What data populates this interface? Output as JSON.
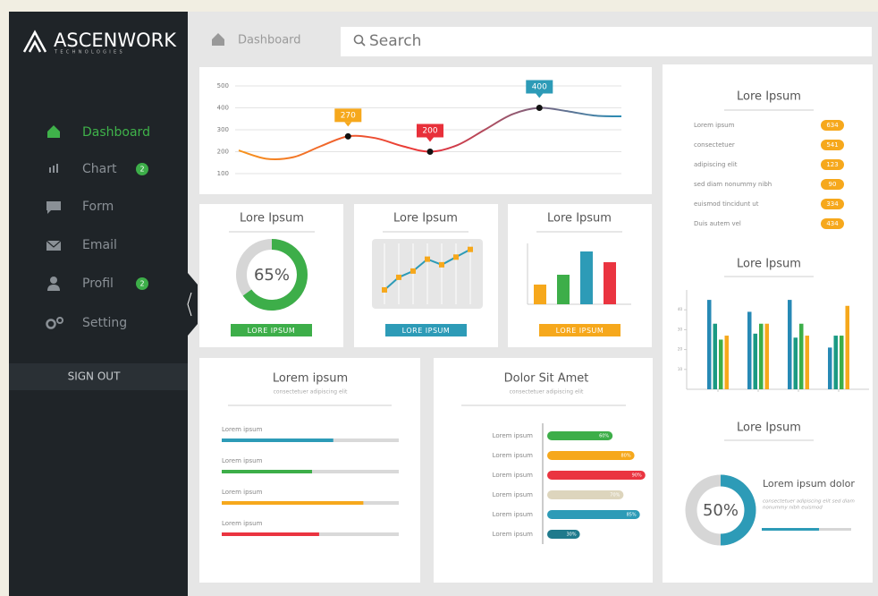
{
  "sidebar": {
    "logo": "ASCENWORK",
    "logo_sub": "TECHNOLOGIES",
    "nav": [
      {
        "label": "Dashboard"
      },
      {
        "label": "Chart",
        "badge": 2
      },
      {
        "label": "Form"
      },
      {
        "label": "Email"
      },
      {
        "label": "Profil",
        "badge": 2
      },
      {
        "label": "Setting"
      }
    ],
    "sign_out": "SIGN OUT"
  },
  "topbar": {
    "breadcrumb": "Dashboard",
    "search_placeholder": "Search"
  },
  "list_card": {
    "title": "Lore Ipsum",
    "items": [
      {
        "label": "Lorem ipsum",
        "value": 634
      },
      {
        "label": "consectetuer",
        "value": 541
      },
      {
        "label": "adipiscing elit",
        "value": 123
      },
      {
        "label": "sed diam nonummy nibh",
        "value": 90
      },
      {
        "label": "euismod tincidunt ut",
        "value": 334
      },
      {
        "label": "Duis autem vel",
        "value": 434
      }
    ]
  },
  "chart_data": [
    {
      "type": "line",
      "categories": [
        null,
        null,
        null,
        null,
        null,
        null,
        null,
        null,
        null,
        null,
        null,
        null,
        null,
        null,
        null
      ],
      "values": [
        206,
        168,
        175,
        225,
        270,
        262,
        225,
        200,
        230,
        300,
        370,
        400,
        385,
        365,
        361
      ],
      "ylim": [
        100,
        500
      ],
      "yticks": [
        100,
        200,
        300,
        400,
        500
      ],
      "grid": true,
      "colors": [
        "#f7941d",
        "#e8303a",
        "#2a8db5"
      ],
      "label_colors": [
        null,
        null,
        null,
        null,
        "#f6a81c",
        null,
        null,
        "#e8303a",
        null,
        null,
        null,
        "#2d9bb7",
        null,
        null,
        null
      ]
    },
    {
      "type": "donut",
      "title": "Lore Ipsum",
      "values": [
        65
      ],
      "value_labels": [
        "65%"
      ],
      "color": "#3dae49",
      "button": "LORE IPSUM"
    },
    {
      "type": "line",
      "title": "Lore Ipsum",
      "categories": [
        null,
        null,
        null,
        null,
        null,
        null,
        null
      ],
      "values": [
        2.7,
        4.5,
        5.4,
        7.1,
        6.3,
        7.4,
        8.5
      ],
      "ylim": [
        0,
        10
      ],
      "color": "#2d9bb7",
      "marker_color": "#f6a81c",
      "button": "LORE IPSUM",
      "button_color": "#2d9bb7"
    },
    {
      "type": "bar",
      "title": "Lore Ipsum",
      "categories": [
        null,
        null,
        null,
        null
      ],
      "values": [
        2.2,
        3.3,
        5.9,
        4.7
      ],
      "ylim": [
        0,
        6
      ],
      "colors": [
        "#f6a81c",
        "#3dae49",
        "#2d9bb7",
        "#ea3440"
      ],
      "button": "LORE IPSUM",
      "button_color": "#f6a81c"
    },
    {
      "type": "progress",
      "title": "Lorem ipsum",
      "subtitle": "consectetuer adipiscing elit",
      "categories": [
        "Lorem ipsum",
        "Lorem ipsum",
        "Lorem ipsum",
        "Lorem ipsum"
      ],
      "values": [
        63,
        51,
        80,
        55
      ],
      "xlim": [
        0,
        100
      ],
      "colors": [
        "#2d9bb7",
        "#3dae49",
        "#f6a81c",
        "#ea3440"
      ]
    },
    {
      "type": "hbar",
      "title": "Dolor Sit Amet",
      "subtitle": "consectetuer adipiscing elit",
      "categories": [
        "Lorem ipsum",
        "Lorem ipsum",
        "Lorem ipsum",
        "Lorem ipsum",
        "Lorem ipsum",
        "Lorem ipsum"
      ],
      "values": [
        60,
        80,
        90,
        70,
        85,
        30
      ],
      "value_labels": [
        "60%",
        "80%",
        "90%",
        "70%",
        "85%",
        "30%"
      ],
      "xlim": [
        0,
        100
      ],
      "colors": [
        "#3dae49",
        "#f6a81c",
        "#ea3440",
        "#ddd5bd",
        "#2d9bb7",
        "#1f7a8c"
      ]
    },
    {
      "type": "grouped_bar",
      "title": "Lore Ipsum",
      "categories": [
        null,
        null,
        null,
        null
      ],
      "series": [
        {
          "color": "#2789b5",
          "values": [
            45,
            39,
            45,
            21
          ]
        },
        {
          "color": "#1a9a83",
          "values": [
            33,
            28,
            26,
            27
          ]
        },
        {
          "color": "#3dae49",
          "values": [
            25,
            33,
            33,
            27
          ]
        },
        {
          "color": "#f6a81c",
          "values": [
            27,
            33,
            27,
            42
          ]
        }
      ],
      "ylim": [
        0,
        50
      ],
      "yticks": [
        10,
        20,
        30,
        40
      ]
    },
    {
      "type": "donut",
      "title": "Lore Ipsum",
      "values": [
        50
      ],
      "value_labels": [
        "50%"
      ],
      "color": "#2d9bb7",
      "heading": "Lorem ipsum dolor",
      "text": [
        "consectetuer adipiscing elit sed diam",
        "nonummy nibh euismod"
      ],
      "progress": [
        64
      ]
    }
  ]
}
